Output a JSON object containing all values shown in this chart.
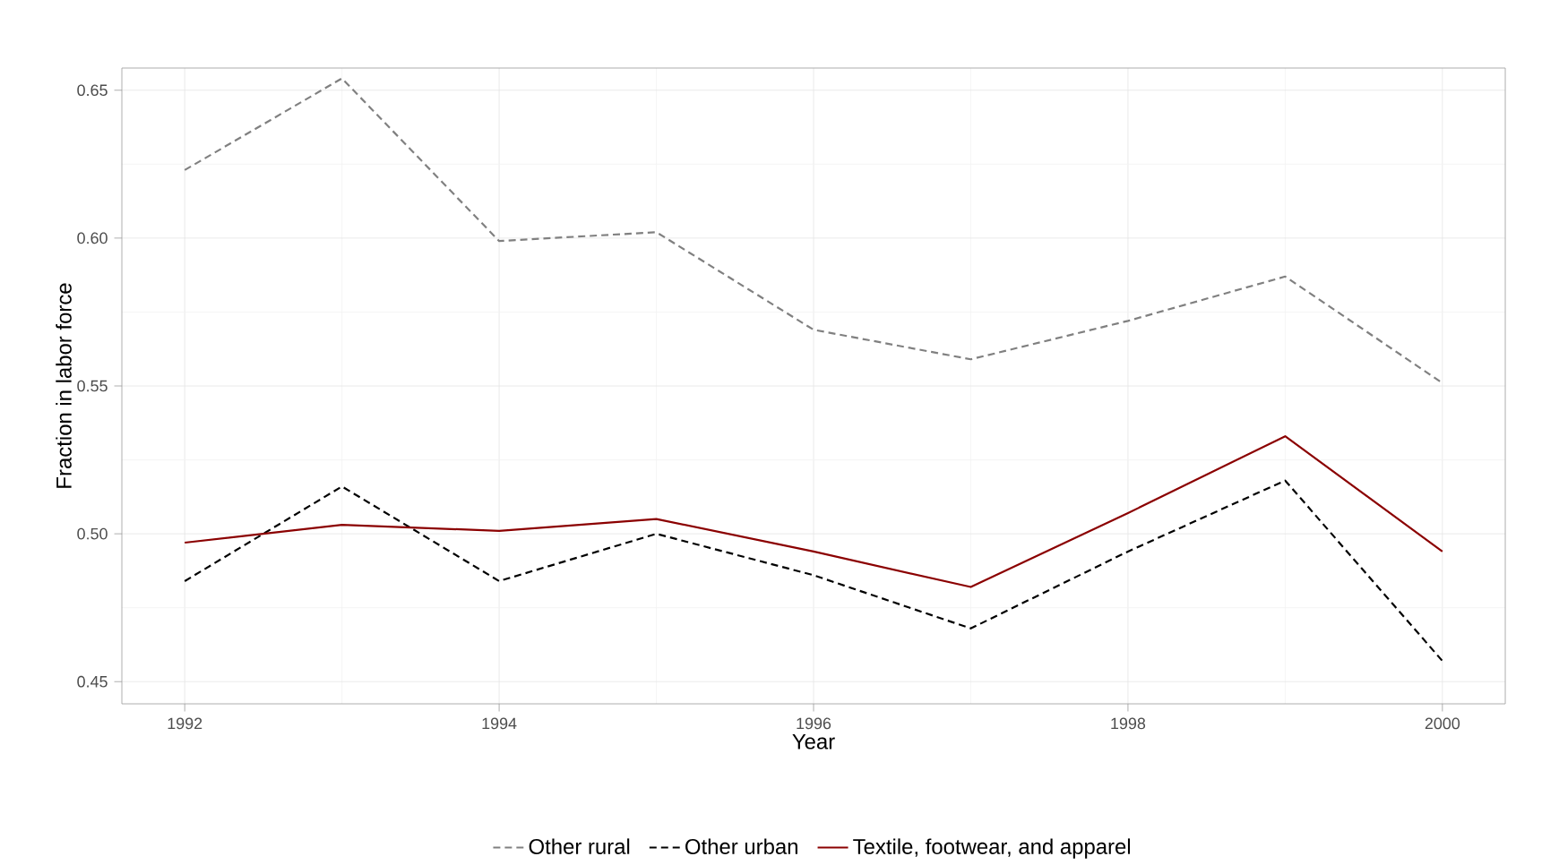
{
  "chart_data": {
    "type": "line",
    "xlabel": "Year",
    "ylabel": "Fraction in labor force",
    "x": [
      1992,
      1993,
      1994,
      1995,
      1996,
      1997,
      1998,
      1999,
      2000
    ],
    "series": [
      {
        "name": "Other rural",
        "color": "#808080",
        "line_style": "dashed",
        "values": [
          0.623,
          0.654,
          0.599,
          0.602,
          0.569,
          0.559,
          0.572,
          0.587,
          0.551
        ]
      },
      {
        "name": "Other urban",
        "color": "#000000",
        "line_style": "dashed",
        "values": [
          0.484,
          0.516,
          0.484,
          0.5,
          0.486,
          0.468,
          0.494,
          0.518,
          0.457
        ]
      },
      {
        "name": "Textile, footwear, and apparel",
        "color": "#8b0000",
        "line_style": "solid",
        "values": [
          0.497,
          0.503,
          0.501,
          0.505,
          0.494,
          0.482,
          0.507,
          0.533,
          0.494
        ]
      }
    ],
    "xlim": [
      1991.6,
      2000.4
    ],
    "ylim": [
      0.4425,
      0.6575
    ],
    "xticks": [
      1992,
      1994,
      1996,
      1998,
      2000
    ],
    "yticks": [
      {
        "value": 0.45,
        "label": "0.45"
      },
      {
        "value": 0.5,
        "label": "0.50"
      },
      {
        "value": 0.55,
        "label": "0.55"
      },
      {
        "value": 0.6,
        "label": "0.60"
      },
      {
        "value": 0.65,
        "label": "0.65"
      }
    ],
    "grid": true,
    "legend": "bottom"
  }
}
